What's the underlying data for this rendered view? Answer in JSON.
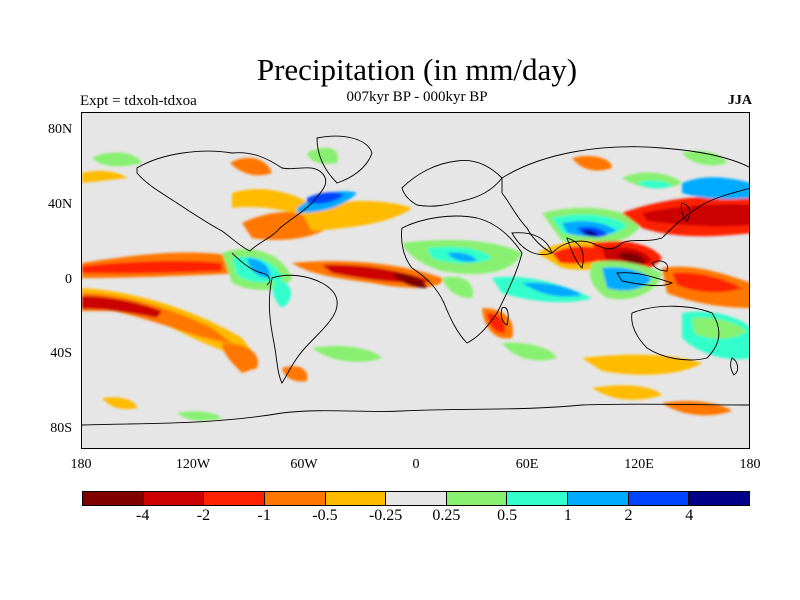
{
  "header": {
    "title": "Precipitation (in mm/day)",
    "subtitle": "007kyr BP - 000kyr BP",
    "left_label": "Expt = tdxoh-tdxoa",
    "right_label": "JJA"
  },
  "map": {
    "lat_ticks": [
      "80N",
      "40N",
      "0",
      "40S",
      "80S"
    ],
    "lon_ticks": [
      "180",
      "120W",
      "60W",
      "0",
      "60E",
      "120E",
      "180"
    ],
    "background_color": "#e6e6e6"
  },
  "colorbar": {
    "colors": [
      "#800000",
      "#cc0000",
      "#ff2200",
      "#ff7700",
      "#ffbb00",
      "#e6e6e6",
      "#88f070",
      "#33ffcc",
      "#00aaff",
      "#0044ff",
      "#000088"
    ],
    "labels": [
      "-4",
      "-2",
      "-1",
      "-0.5",
      "-0.25",
      "0.25",
      "0.5",
      "1",
      "2",
      "4"
    ]
  },
  "chart_data": {
    "type": "heatmap",
    "title": "Precipitation (in mm/day)",
    "subtitle": "007kyr BP - 000kyr BP",
    "experiment": "Expt = tdxoh-tdxoa",
    "season": "JJA",
    "x_ticks": [
      "180",
      "120W",
      "60W",
      "0",
      "60E",
      "120E",
      "180"
    ],
    "y_ticks": [
      "80N",
      "40N",
      "0",
      "40S",
      "80S"
    ],
    "xlim": [
      -180,
      180
    ],
    "ylim": [
      -90,
      90
    ],
    "contour_levels": [
      -4,
      -2,
      -1,
      -0.5,
      -0.25,
      0.25,
      0.5,
      1,
      2,
      4
    ],
    "anomaly_regions": [
      {
        "lon": -170,
        "lat": 8,
        "level": -1
      },
      {
        "lon": -130,
        "lat": 8,
        "level": -1
      },
      {
        "lon": -165,
        "lat": -10,
        "level": -2
      },
      {
        "lon": -120,
        "lat": -25,
        "level": -0.5
      },
      {
        "lon": -95,
        "lat": 10,
        "level": 1
      },
      {
        "lon": -85,
        "lat": 10,
        "level": 2
      },
      {
        "lon": -80,
        "lat": 35,
        "level": -1
      },
      {
        "lon": -50,
        "lat": 40,
        "level": -1
      },
      {
        "lon": -50,
        "lat": 5,
        "level": -1
      },
      {
        "lon": -15,
        "lat": 5,
        "level": -4
      },
      {
        "lon": 10,
        "lat": 8,
        "level": 1
      },
      {
        "lon": 40,
        "lat": 10,
        "level": 0.5
      },
      {
        "lon": 70,
        "lat": 10,
        "level": 0.5
      },
      {
        "lon": 80,
        "lat": 20,
        "level": 2
      },
      {
        "lon": 95,
        "lat": 25,
        "level": 4
      },
      {
        "lon": 110,
        "lat": 15,
        "level": -4
      },
      {
        "lon": 125,
        "lat": 10,
        "level": -2
      },
      {
        "lon": 150,
        "lat": 35,
        "level": -2
      },
      {
        "lon": 115,
        "lat": 35,
        "level": 1
      },
      {
        "lon": 95,
        "lat": -5,
        "level": 1
      },
      {
        "lon": 75,
        "lat": -5,
        "level": -0.5
      },
      {
        "lon": 130,
        "lat": -5,
        "level": -1
      },
      {
        "lon": 160,
        "lat": -15,
        "level": 1
      },
      {
        "lon": 45,
        "lat": -20,
        "level": -1
      },
      {
        "lon": 50,
        "lat": -40,
        "level": 0.5
      },
      {
        "lon": 110,
        "lat": -45,
        "level": -0.5
      },
      {
        "lon": -40,
        "lat": -45,
        "level": 0.5
      },
      {
        "lon": -170,
        "lat": 65,
        "level": 0.5
      },
      {
        "lon": -110,
        "lat": 65,
        "level": -0.5
      },
      {
        "lon": 60,
        "lat": 65,
        "level": -0.5
      }
    ]
  }
}
